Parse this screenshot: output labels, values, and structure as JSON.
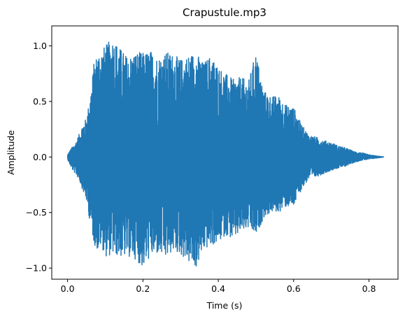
{
  "chart_data": {
    "type": "line",
    "title": "Crapustule.mp3",
    "xlabel": "Time (s)",
    "ylabel": "Amplitude",
    "xlim": [
      -0.042,
      0.877
    ],
    "ylim": [
      -1.1,
      1.18
    ],
    "x_ticks": [
      "0.0",
      "0.2",
      "0.4",
      "0.6",
      "0.8"
    ],
    "x_tick_values": [
      0.0,
      0.2,
      0.4,
      0.6,
      0.8
    ],
    "y_ticks": [
      "1.0",
      "0.5",
      "0.0",
      "−0.5",
      "−1.0"
    ],
    "y_tick_values": [
      1.0,
      0.5,
      0.0,
      -0.5,
      -1.0
    ],
    "grid": false,
    "legend": false,
    "color": "#1f77b4",
    "series": [
      {
        "x": [
          0.0,
          0.01,
          0.02,
          0.03,
          0.04,
          0.05,
          0.06,
          0.07,
          0.08,
          0.09,
          0.1,
          0.12,
          0.14,
          0.16,
          0.18,
          0.2,
          0.22,
          0.24,
          0.26,
          0.28,
          0.3,
          0.32,
          0.34,
          0.36,
          0.38,
          0.4,
          0.42,
          0.44,
          0.46,
          0.48,
          0.5,
          0.52,
          0.54,
          0.56,
          0.58,
          0.6,
          0.62,
          0.64,
          0.66,
          0.68,
          0.7,
          0.72,
          0.74,
          0.76,
          0.78,
          0.8,
          0.82,
          0.84
        ],
        "y_max": [
          0.02,
          0.08,
          0.12,
          0.2,
          0.3,
          0.35,
          0.55,
          0.85,
          0.95,
          0.98,
          1.0,
          1.08,
          0.98,
          0.9,
          0.95,
          0.94,
          0.96,
          0.9,
          0.95,
          0.93,
          0.88,
          0.92,
          0.95,
          0.85,
          0.92,
          0.82,
          0.75,
          0.7,
          0.72,
          0.68,
          0.95,
          0.6,
          0.55,
          0.55,
          0.47,
          0.45,
          0.3,
          0.2,
          0.18,
          0.15,
          0.13,
          0.1,
          0.08,
          0.05,
          0.04,
          0.02,
          0.01,
          0.0
        ],
        "y_min": [
          -0.02,
          -0.1,
          -0.15,
          -0.2,
          -0.3,
          -0.4,
          -0.6,
          -0.78,
          -0.85,
          -0.8,
          -0.9,
          -0.88,
          -0.9,
          -0.9,
          -0.92,
          -1.0,
          -0.9,
          -0.88,
          -0.92,
          -0.85,
          -0.88,
          -0.95,
          -1.01,
          -0.85,
          -0.8,
          -0.78,
          -0.7,
          -0.75,
          -0.68,
          -0.65,
          -0.72,
          -0.55,
          -0.5,
          -0.5,
          -0.45,
          -0.45,
          -0.3,
          -0.2,
          -0.18,
          -0.15,
          -0.12,
          -0.1,
          -0.08,
          -0.05,
          -0.03,
          -0.02,
          -0.01,
          0.0
        ]
      }
    ]
  }
}
